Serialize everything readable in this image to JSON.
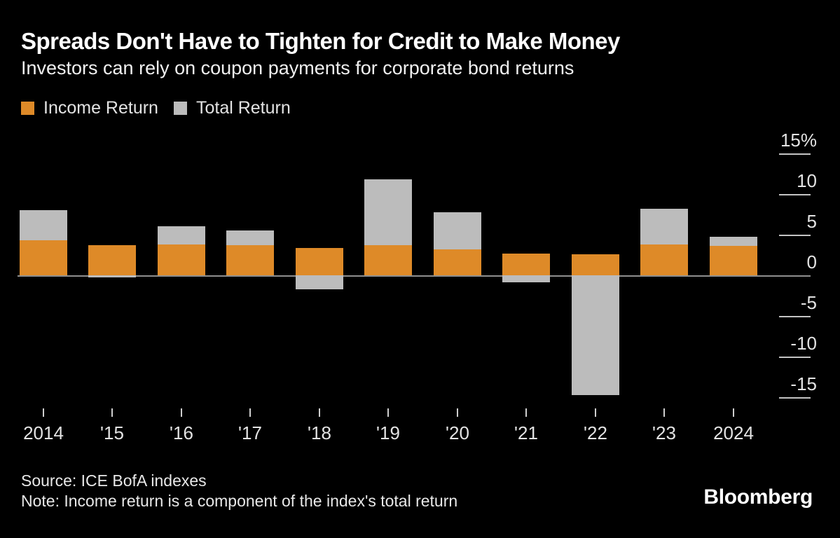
{
  "header": {
    "title": "Spreads Don't Have to Tighten for Credit to Make Money",
    "subtitle": "Investors can rely on coupon payments for corporate bond returns"
  },
  "legend": {
    "items": [
      {
        "label": "Income Return",
        "color": "#de8a28"
      },
      {
        "label": "Total Return",
        "color": "#bcbcbc"
      }
    ]
  },
  "chart_data": {
    "type": "bar",
    "overlay": true,
    "title": "Spreads Don't Have to Tighten for Credit to Make Money",
    "subtitle": "Investors can rely on coupon payments for corporate bond returns",
    "unit": "%",
    "categories": [
      "2014",
      "'15",
      "'16",
      "'17",
      "'18",
      "'19",
      "'20",
      "'21",
      "'22",
      "'23",
      "2024"
    ],
    "series": [
      {
        "name": "Income Return",
        "color": "#de8a28",
        "values": [
          4.3,
          3.7,
          3.8,
          3.7,
          3.4,
          3.7,
          3.2,
          2.7,
          2.6,
          3.8,
          3.6
        ]
      },
      {
        "name": "Total Return",
        "color": "#bcbcbc",
        "values": [
          8.0,
          -0.3,
          6.0,
          5.5,
          -1.7,
          11.8,
          7.8,
          -0.9,
          -14.7,
          8.2,
          4.7
        ]
      }
    ],
    "ylim": [
      -17.5,
      15.5
    ],
    "y_ticks": [
      {
        "value": 15,
        "label": "15%"
      },
      {
        "value": 10,
        "label": "10"
      },
      {
        "value": 5,
        "label": "5"
      },
      {
        "value": 0,
        "label": "0"
      },
      {
        "value": -5,
        "label": "-5"
      },
      {
        "value": -10,
        "label": "-10"
      },
      {
        "value": -15,
        "label": "-15"
      }
    ],
    "grid": "right-side-short-ticks",
    "legend_position": "top-left",
    "colors": {
      "background": "#000000",
      "axis_line": "#8f8f8f",
      "grid_tick": "#c4c4c4",
      "text": "#e3e3e3"
    }
  },
  "footer": {
    "source": "Source: ICE BofA indexes",
    "note": "Note: Income return is a component of the index's total return",
    "brand": "Bloomberg"
  }
}
